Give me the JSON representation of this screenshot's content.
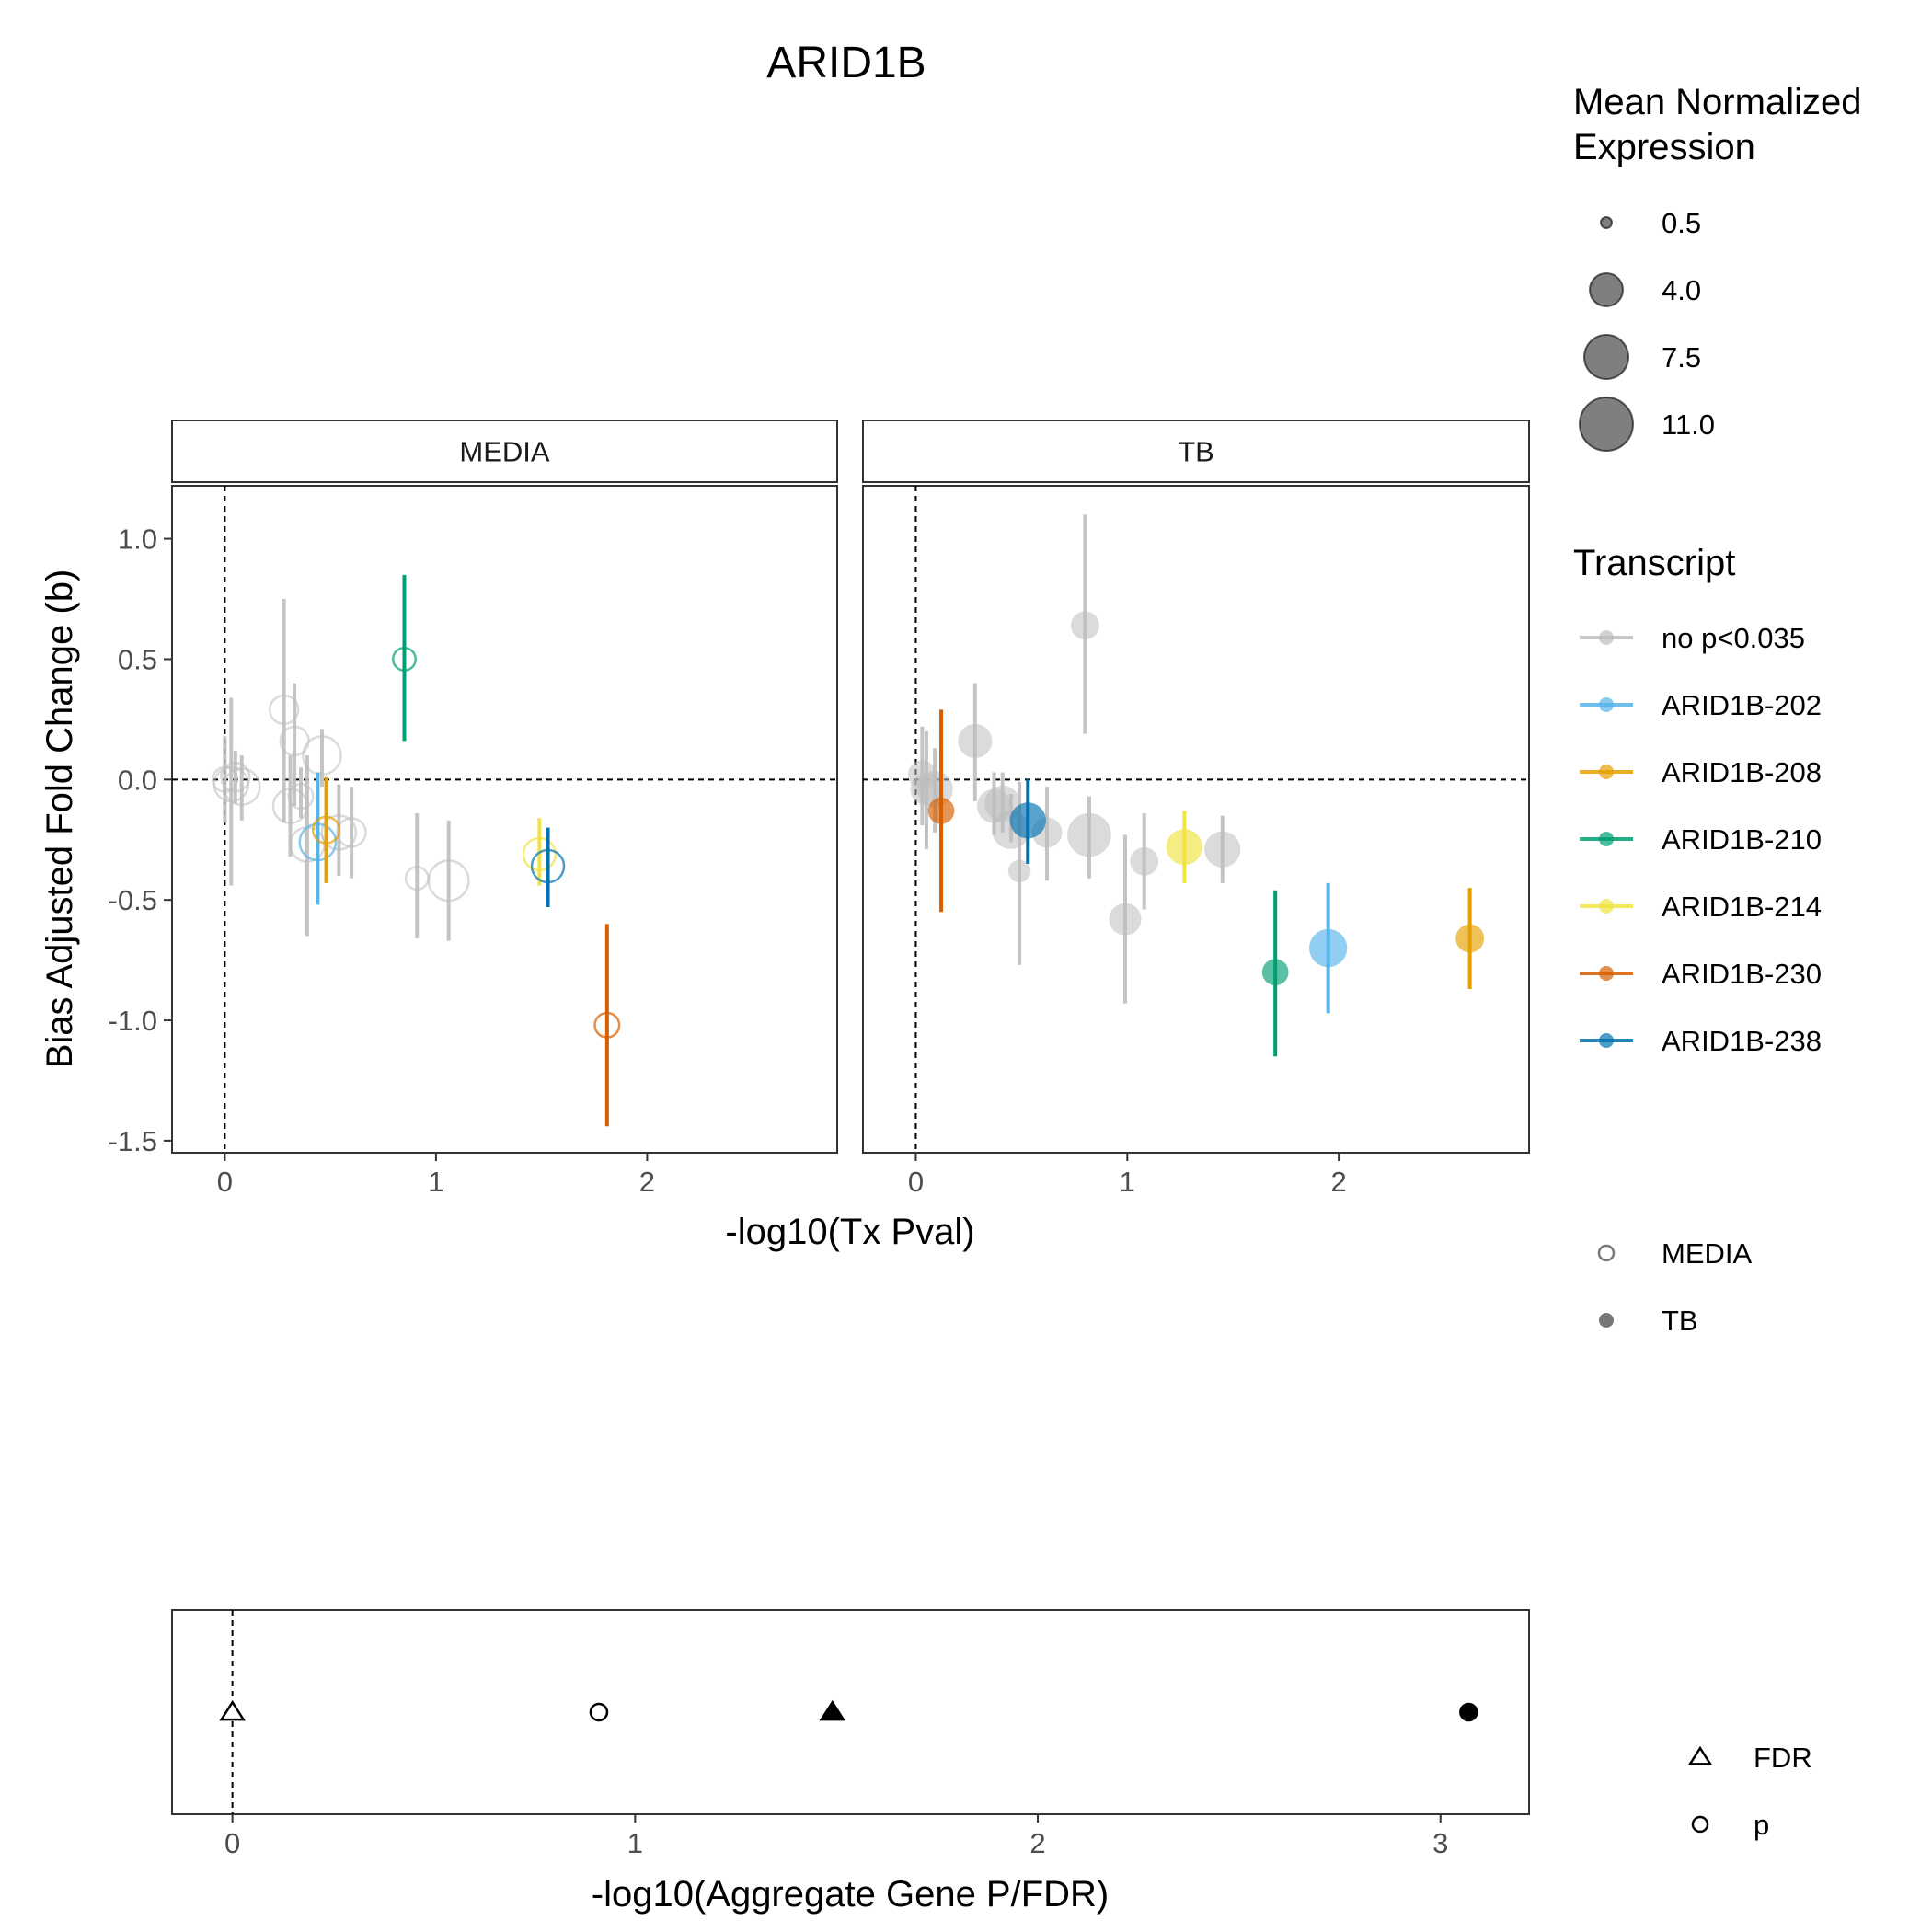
{
  "title": "ARID1B",
  "chart_data": [
    {
      "type": "scatter",
      "name": "transcript-panel",
      "xlabel": "-log10(Tx Pval)",
      "ylabel": "Bias Adjusted Fold Change (b)",
      "xlim": [
        -0.25,
        2.9
      ],
      "ylim": [
        -1.55,
        1.22
      ],
      "x_ticks": [
        0,
        1,
        2
      ],
      "x_tick_labels": [
        "0",
        "1",
        "2"
      ],
      "y_ticks": [
        1.0,
        0.5,
        0.0,
        -0.5,
        -1.0,
        -1.5
      ],
      "y_tick_labels": [
        "1.0",
        "0.5",
        "0.0",
        "-0.5",
        "-1.0",
        "-1.5"
      ],
      "reference_lines": {
        "x": 0,
        "y": 0,
        "style": "dashed"
      },
      "grid": false,
      "facets": [
        "MEDIA",
        "TB"
      ],
      "points": {
        "MEDIA": [
          {
            "x": 0.0,
            "y": 0.0,
            "lo": -0.18,
            "hi": 0.18,
            "size": 3.0,
            "t": "none"
          },
          {
            "x": 0.03,
            "y": -0.02,
            "lo": -0.44,
            "hi": 0.34,
            "size": 5.5,
            "t": "none"
          },
          {
            "x": 0.05,
            "y": 0.01,
            "lo": -0.1,
            "hi": 0.12,
            "size": 4.0,
            "t": "none"
          },
          {
            "x": 0.08,
            "y": -0.03,
            "lo": -0.17,
            "hi": 0.1,
            "size": 6.0,
            "t": "none"
          },
          {
            "x": 0.28,
            "y": 0.29,
            "lo": -0.18,
            "hi": 0.75,
            "size": 4.0,
            "t": "none"
          },
          {
            "x": 0.31,
            "y": -0.11,
            "lo": -0.32,
            "hi": 0.1,
            "size": 5.5,
            "t": "none"
          },
          {
            "x": 0.33,
            "y": 0.16,
            "lo": -0.11,
            "hi": 0.4,
            "size": 4.0,
            "t": "none"
          },
          {
            "x": 0.36,
            "y": -0.07,
            "lo": -0.16,
            "hi": 0.05,
            "size": 3.0,
            "t": "none"
          },
          {
            "x": 0.39,
            "y": -0.27,
            "lo": -0.65,
            "hi": 0.1,
            "size": 5.5,
            "t": "none"
          },
          {
            "x": 0.46,
            "y": 0.1,
            "lo": -0.03,
            "hi": 0.21,
            "size": 6.5,
            "t": "none"
          },
          {
            "x": 0.54,
            "y": -0.22,
            "lo": -0.4,
            "hi": -0.02,
            "size": 5.5,
            "t": "none"
          },
          {
            "x": 0.6,
            "y": -0.22,
            "lo": -0.41,
            "hi": -0.03,
            "size": 4.0,
            "t": "none"
          },
          {
            "x": 0.91,
            "y": -0.41,
            "lo": -0.66,
            "hi": -0.14,
            "size": 2.5,
            "t": "none"
          },
          {
            "x": 1.06,
            "y": -0.42,
            "lo": -0.67,
            "hi": -0.17,
            "size": 7.0,
            "t": "none"
          },
          {
            "x": 0.44,
            "y": -0.26,
            "lo": -0.52,
            "hi": 0.03,
            "size": 6.0,
            "t": "ARID1B-202"
          },
          {
            "x": 0.48,
            "y": -0.21,
            "lo": -0.43,
            "hi": 0.01,
            "size": 3.5,
            "t": "ARID1B-208"
          },
          {
            "x": 0.85,
            "y": 0.5,
            "lo": 0.16,
            "hi": 0.85,
            "size": 2.5,
            "t": "ARID1B-210"
          },
          {
            "x": 1.49,
            "y": -0.31,
            "lo": -0.44,
            "hi": -0.16,
            "size": 5.0,
            "t": "ARID1B-214"
          },
          {
            "x": 1.81,
            "y": -1.02,
            "lo": -1.44,
            "hi": -0.6,
            "size": 3.0,
            "t": "ARID1B-230"
          },
          {
            "x": 1.53,
            "y": -0.36,
            "lo": -0.53,
            "hi": -0.2,
            "size": 5.0,
            "t": "ARID1B-238"
          }
        ],
        "TB": [
          {
            "x": 0.03,
            "y": 0.02,
            "lo": -0.19,
            "hi": 0.22,
            "size": 4.0,
            "t": "none"
          },
          {
            "x": 0.05,
            "y": -0.04,
            "lo": -0.29,
            "hi": 0.2,
            "size": 5.0,
            "t": "none"
          },
          {
            "x": 0.09,
            "y": -0.04,
            "lo": -0.22,
            "hi": 0.13,
            "size": 6.0,
            "t": "none"
          },
          {
            "x": 0.28,
            "y": 0.16,
            "lo": -0.09,
            "hi": 0.4,
            "size": 5.5,
            "t": "none"
          },
          {
            "x": 0.37,
            "y": -0.11,
            "lo": -0.23,
            "hi": 0.03,
            "size": 5.5,
            "t": "none"
          },
          {
            "x": 0.41,
            "y": -0.1,
            "lo": -0.22,
            "hi": 0.03,
            "size": 6.0,
            "t": "none"
          },
          {
            "x": 0.45,
            "y": -0.21,
            "lo": -0.26,
            "hi": -0.06,
            "size": 6.5,
            "t": "none"
          },
          {
            "x": 0.49,
            "y": -0.38,
            "lo": -0.77,
            "hi": -0.01,
            "size": 2.5,
            "t": "none"
          },
          {
            "x": 0.62,
            "y": -0.22,
            "lo": -0.42,
            "hi": -0.03,
            "size": 4.5,
            "t": "none"
          },
          {
            "x": 0.8,
            "y": 0.64,
            "lo": 0.19,
            "hi": 1.1,
            "size": 4.0,
            "t": "none"
          },
          {
            "x": 0.82,
            "y": -0.23,
            "lo": -0.41,
            "hi": -0.07,
            "size": 8.0,
            "t": "none"
          },
          {
            "x": 0.99,
            "y": -0.58,
            "lo": -0.93,
            "hi": -0.23,
            "size": 5.0,
            "t": "none"
          },
          {
            "x": 1.08,
            "y": -0.34,
            "lo": -0.54,
            "hi": -0.14,
            "size": 4.0,
            "t": "none"
          },
          {
            "x": 1.45,
            "y": -0.29,
            "lo": -0.43,
            "hi": -0.15,
            "size": 6.0,
            "t": "none"
          },
          {
            "x": 1.95,
            "y": -0.7,
            "lo": -0.97,
            "hi": -0.43,
            "size": 6.5,
            "t": "ARID1B-202"
          },
          {
            "x": 2.62,
            "y": -0.66,
            "lo": -0.87,
            "hi": -0.45,
            "size": 4.0,
            "t": "ARID1B-208"
          },
          {
            "x": 1.7,
            "y": -0.8,
            "lo": -1.15,
            "hi": -0.46,
            "size": 3.5,
            "t": "ARID1B-210"
          },
          {
            "x": 1.27,
            "y": -0.28,
            "lo": -0.43,
            "hi": -0.13,
            "size": 6.0,
            "t": "ARID1B-214"
          },
          {
            "x": 0.12,
            "y": -0.13,
            "lo": -0.55,
            "hi": 0.29,
            "size": 3.5,
            "t": "ARID1B-230"
          },
          {
            "x": 0.53,
            "y": -0.17,
            "lo": -0.35,
            "hi": 0.0,
            "size": 6.0,
            "t": "ARID1B-238"
          }
        ]
      }
    },
    {
      "type": "scatter",
      "name": "aggregate-panel",
      "xlabel": "-log10(Aggregate Gene P/FDR)",
      "xlim": [
        -0.15,
        3.22
      ],
      "x_ticks": [
        0,
        1,
        2,
        3
      ],
      "x_tick_labels": [
        "0",
        "1",
        "2",
        "3"
      ],
      "reference_lines": {
        "x": 0,
        "style": "dashed"
      },
      "points": [
        {
          "x": 0.0,
          "measure": "FDR",
          "condition": "MEDIA"
        },
        {
          "x": 0.91,
          "measure": "p",
          "condition": "MEDIA"
        },
        {
          "x": 1.49,
          "measure": "FDR",
          "condition": "TB"
        },
        {
          "x": 3.07,
          "measure": "p",
          "condition": "TB"
        }
      ]
    }
  ],
  "legend": {
    "size": {
      "title_line1": "Mean Normalized",
      "title_line2": "Expression",
      "items": [
        {
          "label": "0.5",
          "value": 0.5
        },
        {
          "label": "4.0",
          "value": 4.0
        },
        {
          "label": "7.5",
          "value": 7.5
        },
        {
          "label": "11.0",
          "value": 11.0
        }
      ]
    },
    "transcript": {
      "title": "Transcript",
      "items": [
        {
          "key": "none",
          "label": "no p<0.035",
          "color": "#bebebe"
        },
        {
          "key": "ARID1B-202",
          "label": "ARID1B-202",
          "color": "#56b4e9"
        },
        {
          "key": "ARID1B-208",
          "label": "ARID1B-208",
          "color": "#e69f00"
        },
        {
          "key": "ARID1B-210",
          "label": "ARID1B-210",
          "color": "#009e73"
        },
        {
          "key": "ARID1B-214",
          "label": "ARID1B-214",
          "color": "#f0e442"
        },
        {
          "key": "ARID1B-230",
          "label": "ARID1B-230",
          "color": "#d55e00"
        },
        {
          "key": "ARID1B-238",
          "label": "ARID1B-238",
          "color": "#0072b2"
        }
      ]
    },
    "condition": {
      "items": [
        {
          "label": "MEDIA",
          "shape": "open-circle"
        },
        {
          "label": "TB",
          "shape": "filled-circle"
        }
      ]
    },
    "measure": {
      "items": [
        {
          "label": "FDR",
          "shape": "open-triangle"
        },
        {
          "label": "p",
          "shape": "open-circle"
        }
      ]
    }
  }
}
